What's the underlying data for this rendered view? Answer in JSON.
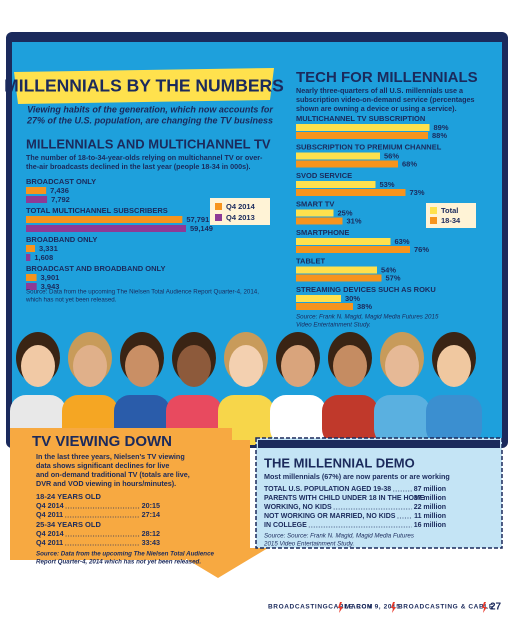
{
  "header": {
    "title": "MILLENNIALS BY THE NUMBERS",
    "subtitle": [
      "Viewing habits of the generation, which now accounts for",
      "27% of the U.S. population, are changing the TV business"
    ]
  },
  "multichannel": {
    "title": "MILLENNIALS AND MULTICHANNEL TV",
    "description": [
      "The number of 18-to-34-year-olds relying on multichannel TV or over-",
      "the-air broadcasts declined in the last year (people 18-34 in 000s)."
    ],
    "legend": [
      "Q4 2014",
      "Q4 2013"
    ],
    "colors": [
      "#f7941d",
      "#8e3a96"
    ],
    "groups": [
      {
        "label": "BROADCAST ONLY",
        "values": [
          7436,
          7792
        ],
        "value_labels": [
          "7,436",
          "7,792"
        ]
      },
      {
        "label": "TOTAL MULTICHANNEL SUBSCRIBERS",
        "values": [
          57791,
          59149
        ],
        "value_labels": [
          "57,791",
          "59,149"
        ]
      },
      {
        "label": "BROADBAND ONLY",
        "values": [
          3331,
          1608
        ],
        "value_labels": [
          "3,331",
          "1,608"
        ]
      },
      {
        "label": "BROADCAST AND BROADBAND ONLY",
        "values": [
          3901,
          3943
        ],
        "value_labels": [
          "3,901",
          "3,943"
        ]
      }
    ],
    "source": [
      "Source: Data from the upcoming The Nielsen Total Audience Report Quarter-4, 2014,",
      "which has not yet been released."
    ]
  },
  "tech": {
    "title": "TECH FOR MILLENNIALS",
    "description": [
      "Nearly three-quarters of all U.S. millennials use a",
      "subscription video-on-demand service (percentages",
      "shown are owning a device or using a service)."
    ],
    "legend": [
      "Total",
      "18-34"
    ],
    "colors": [
      "#ffe14d",
      "#f7941d"
    ],
    "items": [
      {
        "label": "MULTICHANNEL TV SUBSCRIPTION",
        "values": [
          89,
          88
        ],
        "value_labels": [
          "89%",
          "88%"
        ]
      },
      {
        "label": "SUBSCRIPTION TO PREMIUM CHANNEL",
        "values": [
          56,
          68
        ],
        "value_labels": [
          "56%",
          "68%"
        ]
      },
      {
        "label": "SVOD SERVICE",
        "values": [
          53,
          73
        ],
        "value_labels": [
          "53%",
          "73%"
        ]
      },
      {
        "label": "SMART TV",
        "values": [
          25,
          31
        ],
        "value_labels": [
          "25%",
          "31%"
        ]
      },
      {
        "label": "SMARTPHONE",
        "values": [
          63,
          76
        ],
        "value_labels": [
          "63%",
          "76%"
        ]
      },
      {
        "label": "TABLET",
        "values": [
          54,
          57
        ],
        "value_labels": [
          "54%",
          "57%"
        ]
      },
      {
        "label": "STREAMING DEVICES SUCH AS ROKU",
        "values": [
          30,
          38
        ],
        "value_labels": [
          "30%",
          "38%"
        ]
      }
    ],
    "source": [
      "Source: Frank N. Magid, Magid Media Futures 2015",
      "Video Entertainment Study."
    ]
  },
  "viewing": {
    "title": "TV VIEWING DOWN",
    "description": [
      "In the last three years, Nielsen's TV viewing",
      "data shows significant declines for live",
      "and on-demand traditional TV (totals are live,",
      "DVR and VOD viewing in hours/minutes)."
    ],
    "groups": [
      {
        "label": "18-24 YEARS OLD",
        "rows": [
          {
            "period": "Q4 2014",
            "time": "20:15"
          },
          {
            "period": "Q4 2011",
            "time": "27:14"
          }
        ]
      },
      {
        "label": "25-34 YEARS OLD",
        "rows": [
          {
            "period": "Q4 2014",
            "time": "28:12"
          },
          {
            "period": "Q4 2011",
            "time": "33:43"
          }
        ]
      }
    ],
    "source": [
      "Source: Data from the upcoming The Nielsen Total Audience",
      "Report Quarter-4, 2014 which has not yet been released."
    ]
  },
  "demo": {
    "title": "THE MILLENNIAL DEMO",
    "subtitle": "Most millennials (67%) are now parents or are working",
    "rows": [
      {
        "label": "TOTAL U.S. POPULATION AGED 19-38",
        "value": "87 million"
      },
      {
        "label": "PARENTS WITH CHILD UNDER 18 IN THE HOME",
        "value": "37 million"
      },
      {
        "label": "WORKING, NO KIDS",
        "value": "22 million"
      },
      {
        "label": "NOT WORKING OR MARRIED, NO KIDS",
        "value": "11 million"
      },
      {
        "label": "IN COLLEGE",
        "value": "16 million"
      }
    ],
    "source": [
      "Source: Source: Frank N. Magid, Magid Media Futures",
      "2015 Video Entertainment Study."
    ]
  },
  "footer": {
    "site": "BROADCASTINGCABLE.COM",
    "date": "MARCH 9, 2015",
    "magazine": "BROADCASTING & CABLE",
    "page": "27"
  }
}
